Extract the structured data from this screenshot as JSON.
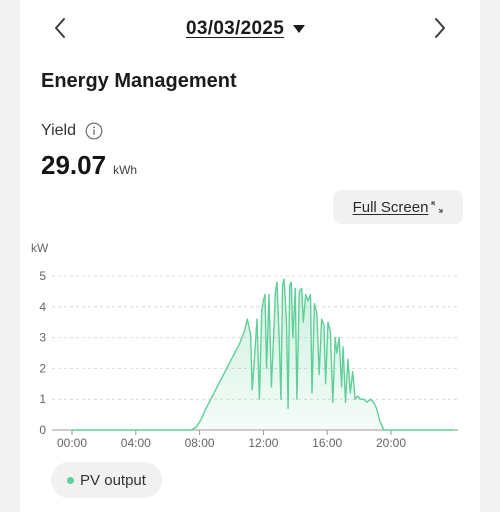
{
  "date_bar": {
    "date": "03/03/2025",
    "prev_icon": "chevron-left-icon",
    "next_icon": "chevron-right-icon",
    "caret_icon": "caret-down-icon"
  },
  "page_title": "Energy Management",
  "yield": {
    "label": "Yield",
    "value": "29.07",
    "unit": "kWh",
    "info_icon": "info-icon"
  },
  "fullscreen": {
    "label": "Full Screen",
    "icon": "expand-arrows-icon"
  },
  "legend": {
    "label": "PV output",
    "color": "#5fcf9a"
  },
  "chart_data": {
    "type": "area",
    "title": "",
    "xlabel": "",
    "ylabel": "kW",
    "ylim": [
      0,
      5
    ],
    "yticks": [
      "0",
      "1",
      "2",
      "3",
      "4",
      "5"
    ],
    "xticks": [
      "00:00",
      "04:00",
      "08:00",
      "12:00",
      "16:00",
      "20:00"
    ],
    "x_hours_range": [
      0,
      24
    ],
    "grid": true,
    "series": [
      {
        "name": "PV output",
        "color": "#5fcf9a",
        "x_hours": [
          0,
          7.5,
          7.8,
          8.1,
          8.4,
          8.7,
          9.0,
          9.3,
          9.6,
          9.9,
          10.2,
          10.5,
          10.8,
          11.0,
          11.2,
          11.3,
          11.45,
          11.6,
          11.75,
          11.9,
          12.0,
          12.1,
          12.2,
          12.35,
          12.5,
          12.65,
          12.75,
          12.85,
          13.0,
          13.1,
          13.2,
          13.3,
          13.45,
          13.55,
          13.65,
          13.75,
          13.85,
          14.0,
          14.1,
          14.25,
          14.4,
          14.5,
          14.65,
          14.8,
          14.95,
          15.05,
          15.2,
          15.35,
          15.5,
          15.65,
          15.8,
          15.9,
          16.05,
          16.2,
          16.35,
          16.5,
          16.6,
          16.75,
          16.9,
          17.0,
          17.15,
          17.3,
          17.45,
          17.6,
          17.75,
          17.9,
          18.1,
          18.3,
          18.5,
          18.7,
          18.9,
          19.1,
          19.3,
          19.55,
          24
        ],
        "values": [
          0,
          0,
          0.1,
          0.35,
          0.7,
          1.0,
          1.3,
          1.6,
          1.9,
          2.2,
          2.5,
          2.8,
          3.2,
          3.6,
          3.1,
          1.3,
          2.4,
          3.6,
          1.0,
          3.9,
          4.2,
          4.4,
          2.0,
          4.4,
          1.4,
          3.2,
          4.5,
          4.8,
          2.8,
          1.0,
          4.7,
          4.9,
          3.5,
          0.7,
          4.7,
          4.8,
          3.0,
          4.6,
          1.0,
          4.5,
          4.6,
          3.5,
          4.4,
          4.2,
          4.4,
          1.2,
          4.1,
          3.8,
          1.8,
          3.6,
          3.4,
          1.5,
          3.5,
          3.2,
          0.9,
          3.0,
          2.5,
          3.0,
          1.4,
          2.7,
          0.9,
          2.3,
          1.2,
          1.9,
          1.0,
          1.1,
          1.0,
          1.0,
          0.9,
          1.0,
          0.9,
          0.7,
          0.3,
          0,
          0
        ]
      }
    ]
  }
}
